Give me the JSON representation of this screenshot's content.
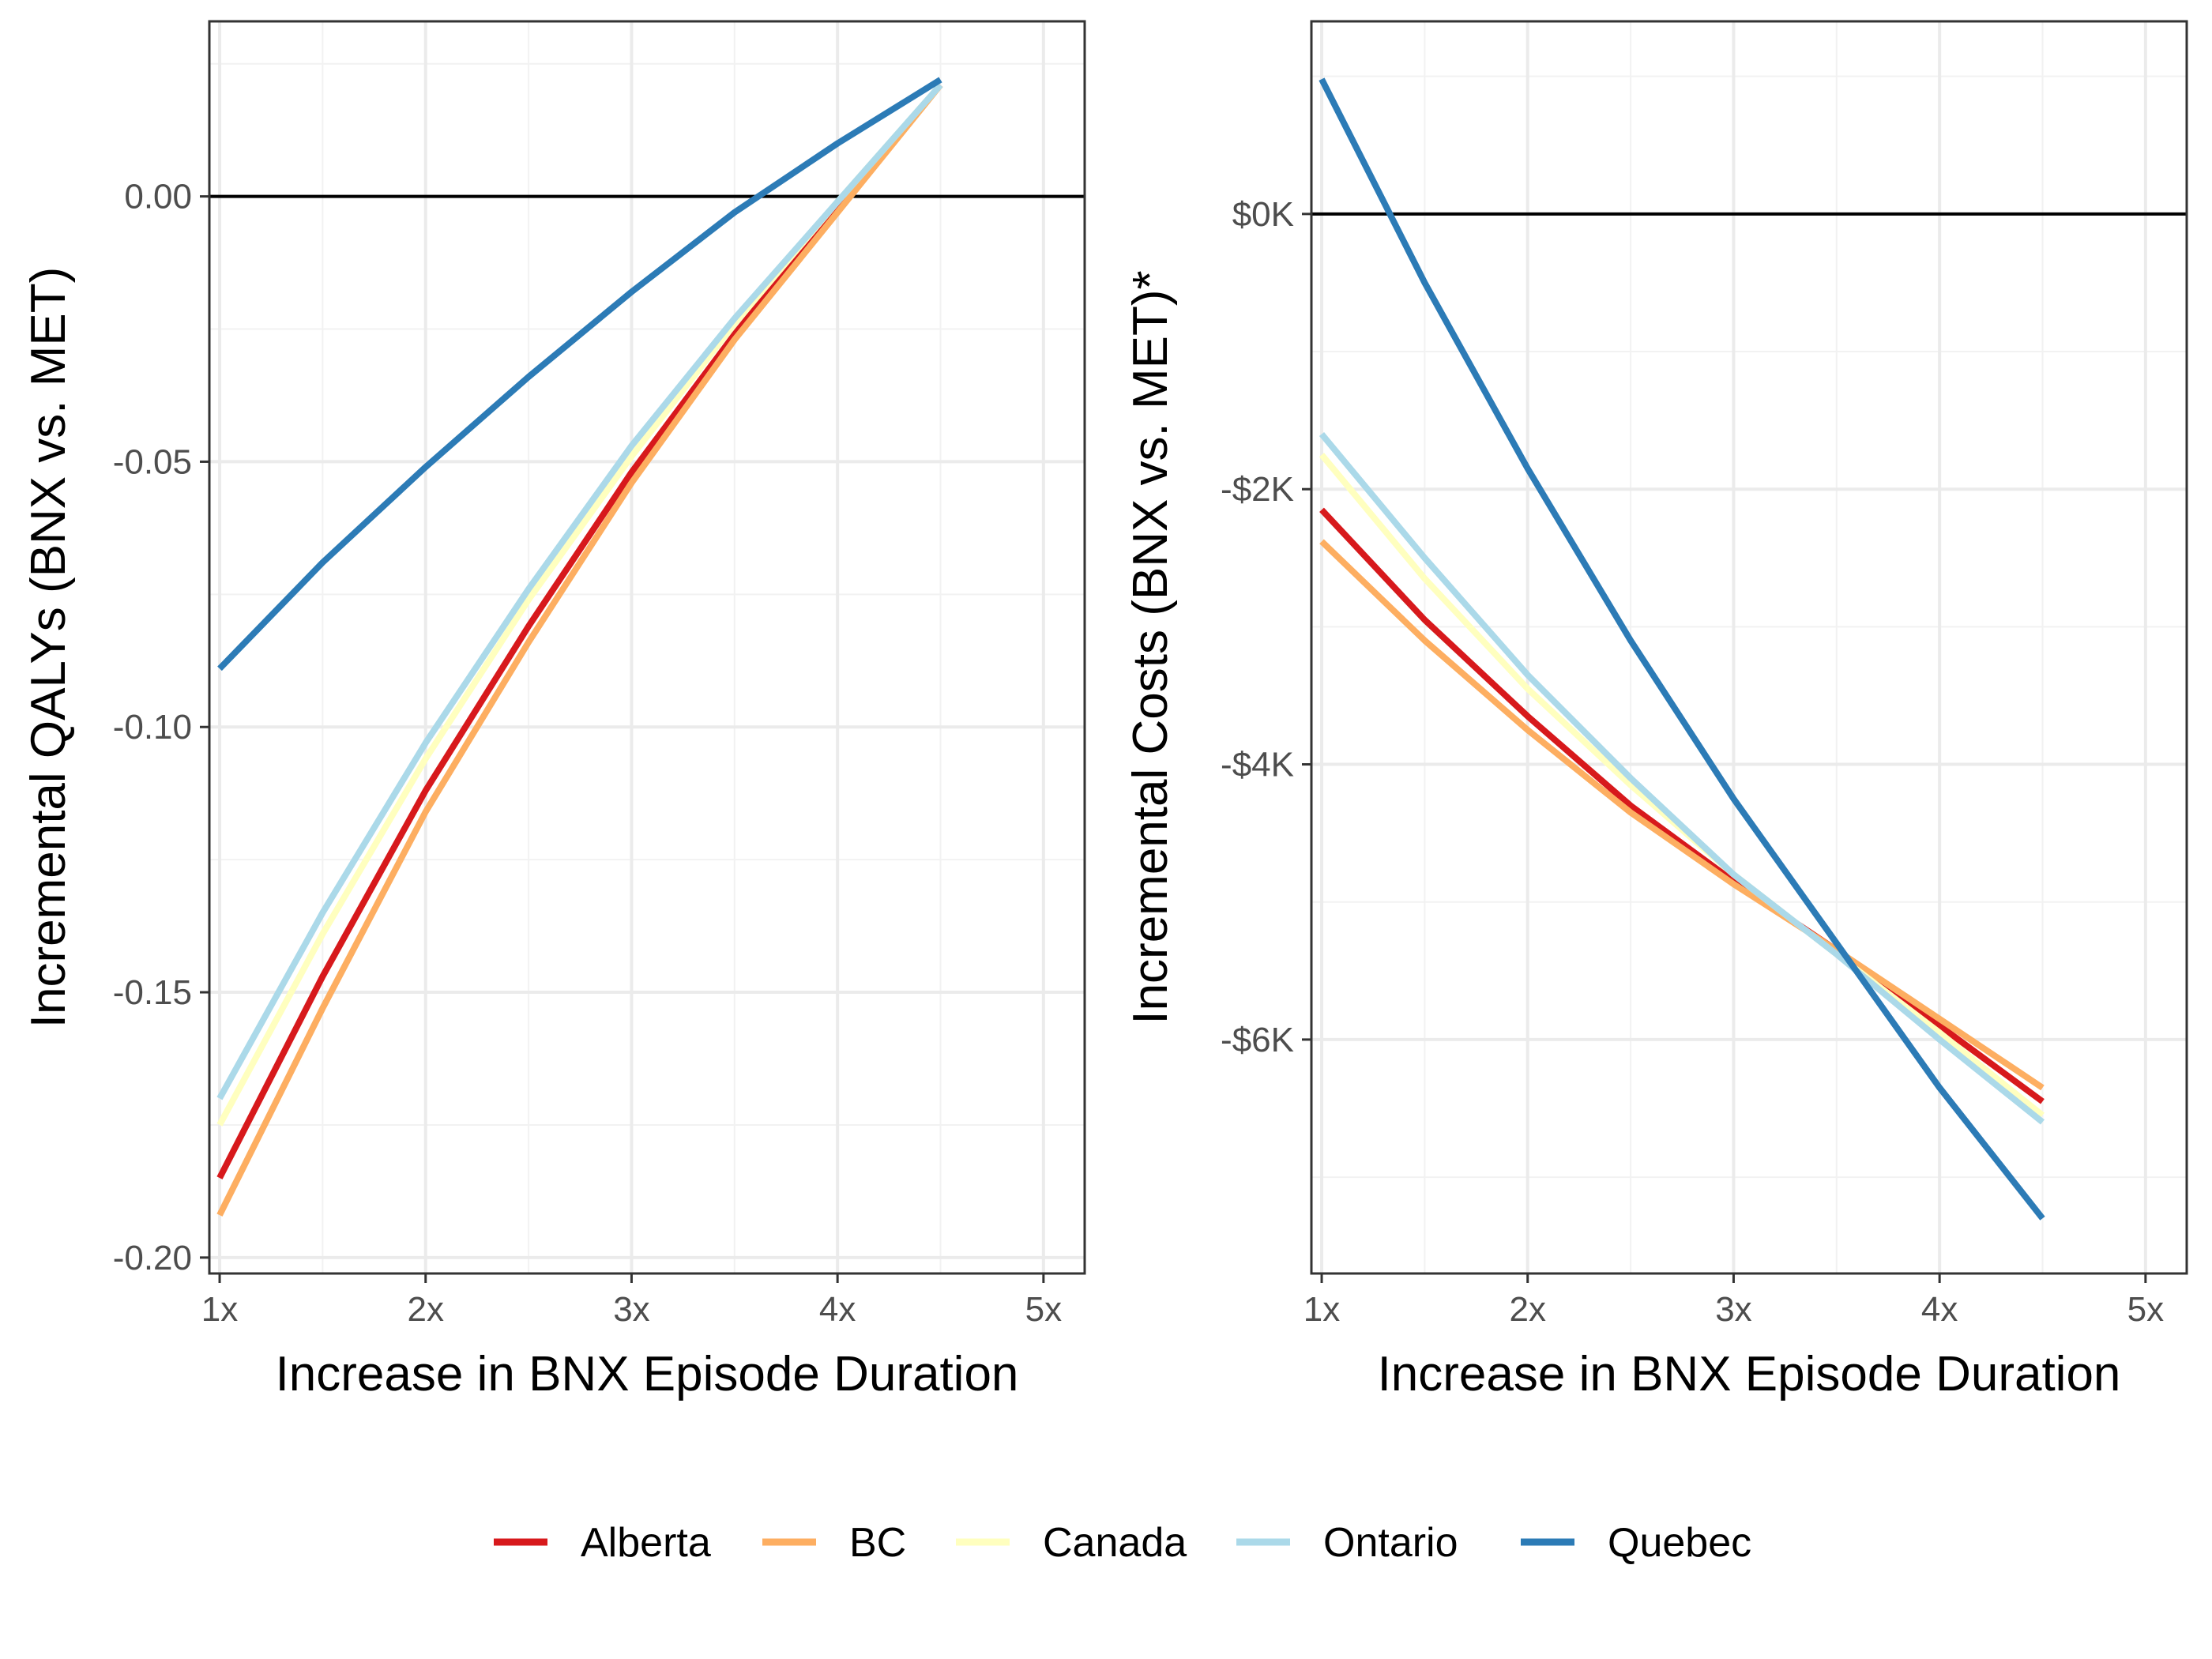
{
  "chart_data": [
    {
      "type": "line",
      "xlabel": "Increase in BNX Episode Duration",
      "ylabel": "Incremental QALYs (BNX vs. MET)",
      "xlim": [
        0.95,
        5.2
      ],
      "ylim": [
        -0.203,
        0.033
      ],
      "x_ticks": [
        1,
        2,
        3,
        4,
        5
      ],
      "x_tick_labels": [
        "1x",
        "2x",
        "3x",
        "4x",
        "5x"
      ],
      "y_ticks": [
        -0.2,
        -0.15,
        -0.1,
        -0.05,
        0.0
      ],
      "y_tick_labels": [
        "-0.20",
        "-0.15",
        "-0.10",
        "-0.05",
        "0.00"
      ],
      "reference_line_y": 0,
      "grid": true,
      "x": [
        1,
        1.5,
        2,
        2.5,
        3,
        3.5,
        4,
        4.5
      ],
      "series": [
        {
          "name": "Alberta",
          "color": "#d7191c",
          "values": [
            -0.185,
            -0.147,
            -0.112,
            -0.081,
            -0.052,
            -0.026,
            -0.002,
            0.021
          ]
        },
        {
          "name": "BC",
          "color": "#fdae61",
          "values": [
            -0.192,
            -0.153,
            -0.116,
            -0.084,
            -0.054,
            -0.027,
            -0.003,
            0.021
          ]
        },
        {
          "name": "Canada",
          "color": "#ffffbf",
          "values": [
            -0.175,
            -0.139,
            -0.106,
            -0.076,
            -0.049,
            -0.024,
            -0.001,
            0.021
          ]
        },
        {
          "name": "Ontario",
          "color": "#abd9e9",
          "values": [
            -0.17,
            -0.135,
            -0.103,
            -0.074,
            -0.047,
            -0.023,
            -0.001,
            0.021
          ]
        },
        {
          "name": "Quebec",
          "color": "#2c7bb6",
          "values": [
            -0.089,
            -0.069,
            -0.051,
            -0.034,
            -0.018,
            -0.003,
            0.01,
            0.022
          ]
        }
      ]
    },
    {
      "type": "line",
      "xlabel": "Increase in BNX Episode Duration",
      "ylabel": "Incremental Costs (BNX vs. MET)*",
      "xlim": [
        0.95,
        5.2
      ],
      "ylim": [
        -7.7,
        1.4
      ],
      "x_ticks": [
        1,
        2,
        3,
        4,
        5
      ],
      "x_tick_labels": [
        "1x",
        "2x",
        "3x",
        "4x",
        "5x"
      ],
      "y_ticks": [
        -6,
        -4,
        -2,
        0
      ],
      "y_tick_labels": [
        "-$6K",
        "-$4K",
        "-$2K",
        "$0K"
      ],
      "reference_line_y": 0,
      "grid": true,
      "x": [
        1,
        1.5,
        2,
        2.5,
        3,
        3.5,
        4,
        4.5
      ],
      "series": [
        {
          "name": "Alberta",
          "color": "#d7191c",
          "values": [
            -2.15,
            -2.95,
            -3.65,
            -4.3,
            -4.85,
            -5.35,
            -5.9,
            -6.45
          ]
        },
        {
          "name": "BC",
          "color": "#fdae61",
          "values": [
            -2.38,
            -3.1,
            -3.75,
            -4.35,
            -4.87,
            -5.35,
            -5.85,
            -6.35
          ]
        },
        {
          "name": "Canada",
          "color": "#ffffbf",
          "values": [
            -1.75,
            -2.65,
            -3.45,
            -4.15,
            -4.8,
            -5.38,
            -5.95,
            -6.55
          ]
        },
        {
          "name": "Ontario",
          "color": "#abd9e9",
          "values": [
            -1.6,
            -2.5,
            -3.35,
            -4.1,
            -4.8,
            -5.38,
            -6.0,
            -6.6
          ]
        },
        {
          "name": "Quebec",
          "color": "#2c7bb6",
          "values": [
            0.98,
            -0.5,
            -1.85,
            -3.1,
            -4.25,
            -5.3,
            -6.35,
            -7.3
          ]
        }
      ]
    }
  ],
  "legend": {
    "placement": "bottom",
    "items": [
      {
        "name": "Alberta",
        "color": "#d7191c"
      },
      {
        "name": "BC",
        "color": "#fdae61"
      },
      {
        "name": "Canada",
        "color": "#ffffbf"
      },
      {
        "name": "Ontario",
        "color": "#abd9e9"
      },
      {
        "name": "Quebec",
        "color": "#2c7bb6"
      }
    ]
  }
}
